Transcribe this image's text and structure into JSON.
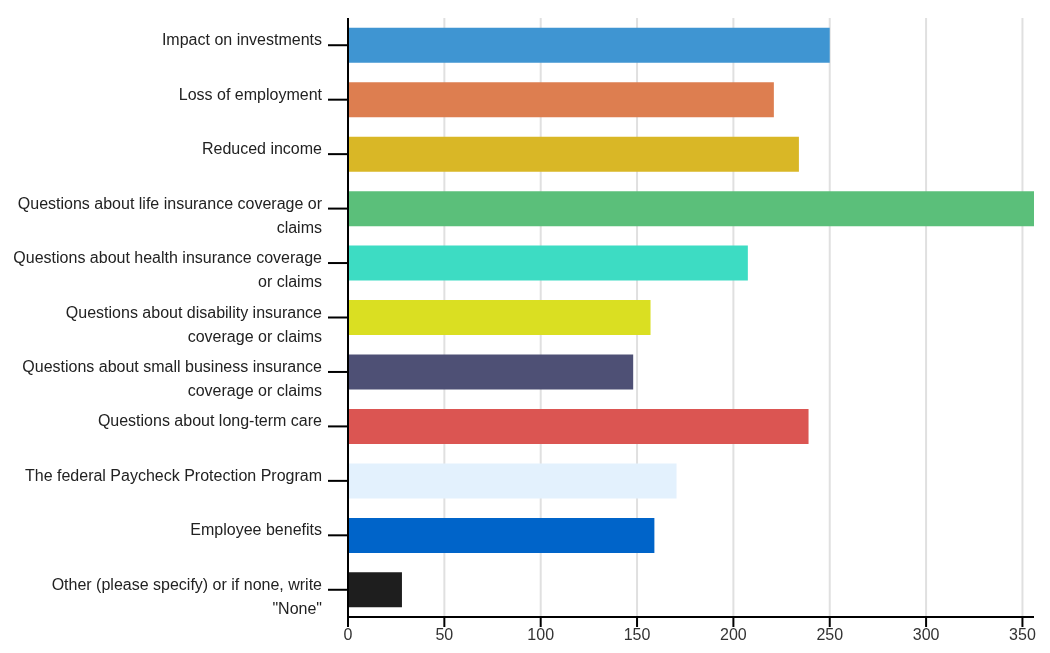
{
  "chart_data": {
    "type": "bar",
    "orientation": "horizontal",
    "categories": [
      "Impact on investments",
      "Loss of employment",
      "Reduced income",
      "Questions about life insurance coverage or claims",
      "Questions about health insurance coverage or claims",
      "Questions about disability insurance coverage or claims",
      "Questions about small business insurance coverage or claims",
      "Questions about long-term care",
      "The federal Paycheck Protection Program",
      "Employee benefits",
      "Other (please specify) or if none, write \"None\""
    ],
    "values": [
      250,
      221,
      234,
      356,
      207.5,
      157,
      148,
      239,
      170.5,
      159,
      28
    ],
    "colors": [
      "#3f95d2",
      "#dd7e50",
      "#d9b726",
      "#5bbf7a",
      "#3ddcc3",
      "#dadf22",
      "#4e5075",
      "#db5552",
      "#e3f1fd",
      "#0064c9",
      "#1e1e1e"
    ],
    "xlim": [
      0,
      356
    ],
    "xticks": [
      0,
      50,
      100,
      150,
      200,
      250,
      300,
      350
    ],
    "grid": "x"
  }
}
